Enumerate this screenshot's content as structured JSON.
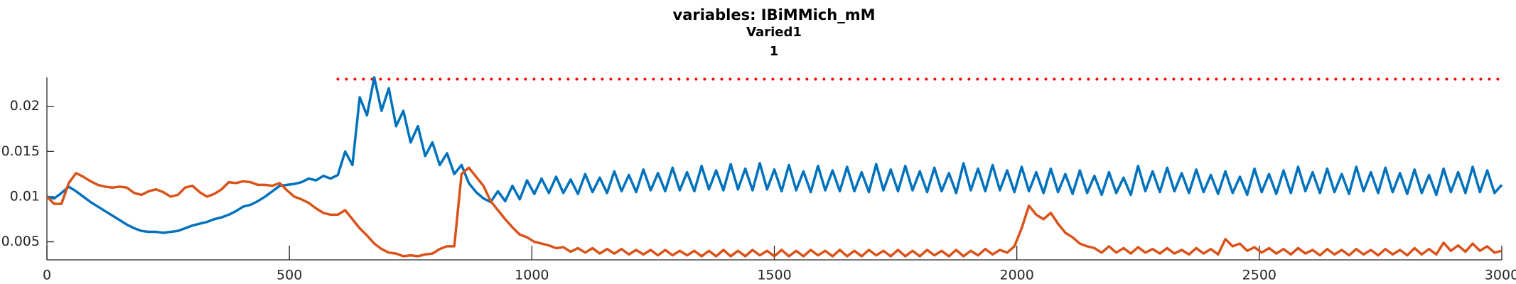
{
  "chart_data": {
    "type": "line",
    "title": "variables: IBiMMich_mM",
    "subtitle": "Varied1",
    "panel_label": "1",
    "x": [
      0,
      15,
      30,
      45,
      60,
      75,
      90,
      105,
      120,
      135,
      150,
      165,
      180,
      195,
      210,
      225,
      240,
      255,
      270,
      285,
      300,
      315,
      330,
      345,
      360,
      375,
      390,
      405,
      420,
      435,
      450,
      465,
      480,
      495,
      510,
      525,
      540,
      555,
      570,
      585,
      600,
      615,
      630,
      645,
      660,
      675,
      690,
      705,
      720,
      735,
      750,
      765,
      780,
      795,
      810,
      825,
      840,
      855,
      870,
      885,
      900,
      915,
      930,
      945,
      960,
      975,
      990,
      1005,
      1020,
      1035,
      1050,
      1065,
      1080,
      1095,
      1110,
      1125,
      1140,
      1155,
      1170,
      1185,
      1200,
      1215,
      1230,
      1245,
      1260,
      1275,
      1290,
      1305,
      1320,
      1335,
      1350,
      1365,
      1380,
      1395,
      1410,
      1425,
      1440,
      1455,
      1470,
      1485,
      1500,
      1515,
      1530,
      1545,
      1560,
      1575,
      1590,
      1605,
      1620,
      1635,
      1650,
      1665,
      1680,
      1695,
      1710,
      1725,
      1740,
      1755,
      1770,
      1785,
      1800,
      1815,
      1830,
      1845,
      1860,
      1875,
      1890,
      1905,
      1920,
      1935,
      1950,
      1965,
      1980,
      1995,
      2010,
      2025,
      2040,
      2055,
      2070,
      2085,
      2100,
      2115,
      2130,
      2145,
      2160,
      2175,
      2190,
      2205,
      2220,
      2235,
      2250,
      2265,
      2280,
      2295,
      2310,
      2325,
      2340,
      2355,
      2370,
      2385,
      2400,
      2415,
      2430,
      2445,
      2460,
      2475,
      2490,
      2505,
      2520,
      2535,
      2550,
      2565,
      2580,
      2595,
      2610,
      2625,
      2640,
      2655,
      2670,
      2685,
      2700,
      2715,
      2730,
      2745,
      2760,
      2775,
      2790,
      2805,
      2820,
      2835,
      2850,
      2865,
      2880,
      2895,
      2910,
      2925,
      2940,
      2955,
      2970,
      2985,
      3000
    ],
    "series": [
      {
        "color": "#0072bd",
        "values": [
          0.01,
          0.0098,
          0.0104,
          0.0111,
          0.0106,
          0.01,
          0.0094,
          0.0089,
          0.0084,
          0.0079,
          0.0074,
          0.0069,
          0.0065,
          0.0062,
          0.0061,
          0.0061,
          0.006,
          0.0061,
          0.0062,
          0.0065,
          0.0068,
          0.007,
          0.0072,
          0.0075,
          0.0077,
          0.008,
          0.0084,
          0.0089,
          0.0091,
          0.0095,
          0.01,
          0.0106,
          0.0112,
          0.0113,
          0.0114,
          0.0116,
          0.012,
          0.0118,
          0.0123,
          0.012,
          0.0124,
          0.015,
          0.0135,
          0.021,
          0.019,
          0.0232,
          0.0195,
          0.022,
          0.0178,
          0.0195,
          0.016,
          0.0178,
          0.0145,
          0.016,
          0.0135,
          0.0148,
          0.0125,
          0.0135,
          0.0115,
          0.0105,
          0.0098,
          0.0094,
          0.0106,
          0.0095,
          0.0112,
          0.0097,
          0.0118,
          0.0103,
          0.012,
          0.0104,
          0.0122,
          0.0104,
          0.0119,
          0.0103,
          0.0125,
          0.0105,
          0.0121,
          0.0104,
          0.0128,
          0.0106,
          0.0124,
          0.0105,
          0.013,
          0.0107,
          0.0126,
          0.0106,
          0.0132,
          0.0107,
          0.0127,
          0.0106,
          0.0134,
          0.0108,
          0.0129,
          0.0107,
          0.0136,
          0.0108,
          0.0131,
          0.0107,
          0.0137,
          0.0108,
          0.013,
          0.0106,
          0.0135,
          0.0107,
          0.0128,
          0.0105,
          0.0134,
          0.0107,
          0.0129,
          0.0106,
          0.0133,
          0.0106,
          0.0127,
          0.0105,
          0.0136,
          0.0107,
          0.013,
          0.0106,
          0.0134,
          0.0107,
          0.0128,
          0.0105,
          0.0132,
          0.0106,
          0.0126,
          0.0104,
          0.0137,
          0.0107,
          0.0131,
          0.0106,
          0.0135,
          0.0107,
          0.0129,
          0.0105,
          0.0133,
          0.0106,
          0.0127,
          0.0104,
          0.0131,
          0.0105,
          0.0125,
          0.0103,
          0.0129,
          0.0104,
          0.0123,
          0.0102,
          0.0127,
          0.0104,
          0.0121,
          0.0102,
          0.0134,
          0.0106,
          0.0128,
          0.0105,
          0.0132,
          0.0106,
          0.0126,
          0.0104,
          0.013,
          0.0105,
          0.0124,
          0.0103,
          0.0128,
          0.0104,
          0.0122,
          0.0102,
          0.0131,
          0.0105,
          0.0125,
          0.0103,
          0.0129,
          0.0104,
          0.0133,
          0.0106,
          0.0127,
          0.0104,
          0.0131,
          0.0105,
          0.0125,
          0.0103,
          0.0133,
          0.0106,
          0.0127,
          0.0104,
          0.0132,
          0.0105,
          0.0126,
          0.0103,
          0.013,
          0.0104,
          0.0124,
          0.0102,
          0.0131,
          0.0105,
          0.0127,
          0.0104,
          0.0133,
          0.0105,
          0.0129,
          0.0104,
          0.0113
        ]
      },
      {
        "color": "#d95319",
        "values": [
          0.01,
          0.0092,
          0.0092,
          0.0115,
          0.0126,
          0.0122,
          0.0117,
          0.0113,
          0.0111,
          0.011,
          0.0111,
          0.011,
          0.0104,
          0.0102,
          0.0106,
          0.0108,
          0.0105,
          0.01,
          0.0102,
          0.011,
          0.0112,
          0.0105,
          0.01,
          0.0103,
          0.0108,
          0.0116,
          0.0115,
          0.0117,
          0.0116,
          0.0113,
          0.0113,
          0.0112,
          0.0115,
          0.0107,
          0.01,
          0.0097,
          0.0093,
          0.0087,
          0.0082,
          0.008,
          0.008,
          0.0085,
          0.0075,
          0.0065,
          0.0057,
          0.0048,
          0.0042,
          0.0038,
          0.0037,
          0.0034,
          0.0035,
          0.0034,
          0.0036,
          0.0037,
          0.0042,
          0.0045,
          0.0045,
          0.0125,
          0.0132,
          0.0122,
          0.0112,
          0.0095,
          0.0085,
          0.0075,
          0.0066,
          0.0058,
          0.0055,
          0.005,
          0.0048,
          0.0046,
          0.0043,
          0.0044,
          0.0039,
          0.0043,
          0.0038,
          0.0043,
          0.0037,
          0.0042,
          0.0037,
          0.0042,
          0.0036,
          0.0041,
          0.0036,
          0.0041,
          0.0035,
          0.0041,
          0.0035,
          0.004,
          0.0035,
          0.004,
          0.0034,
          0.004,
          0.0034,
          0.0041,
          0.0034,
          0.004,
          0.0034,
          0.0041,
          0.0035,
          0.004,
          0.0034,
          0.0041,
          0.0034,
          0.004,
          0.0034,
          0.0041,
          0.0035,
          0.004,
          0.0034,
          0.0041,
          0.0034,
          0.004,
          0.0034,
          0.0041,
          0.0035,
          0.004,
          0.0034,
          0.0041,
          0.0034,
          0.004,
          0.0034,
          0.0041,
          0.0035,
          0.004,
          0.0034,
          0.0041,
          0.0034,
          0.004,
          0.0035,
          0.0042,
          0.0036,
          0.0041,
          0.0038,
          0.0045,
          0.0065,
          0.009,
          0.008,
          0.0075,
          0.0082,
          0.007,
          0.006,
          0.0055,
          0.0048,
          0.0045,
          0.0043,
          0.0038,
          0.0045,
          0.0038,
          0.0043,
          0.0037,
          0.0044,
          0.0038,
          0.0042,
          0.0037,
          0.0043,
          0.0037,
          0.0041,
          0.0036,
          0.0043,
          0.0037,
          0.0042,
          0.0036,
          0.0053,
          0.0045,
          0.0048,
          0.004,
          0.0044,
          0.0038,
          0.0043,
          0.0037,
          0.0042,
          0.0036,
          0.0043,
          0.0037,
          0.0041,
          0.0035,
          0.0042,
          0.0036,
          0.0041,
          0.0035,
          0.0042,
          0.0036,
          0.0041,
          0.0035,
          0.0042,
          0.0036,
          0.0041,
          0.0035,
          0.0043,
          0.0036,
          0.0042,
          0.0036,
          0.0049,
          0.004,
          0.0046,
          0.0039,
          0.0048,
          0.004,
          0.0045,
          0.0038,
          0.004
        ]
      }
    ],
    "hlines": [
      {
        "y": 0.023,
        "xmin": 600,
        "xmax": 3000,
        "color": "#ff0000"
      }
    ],
    "xlim": [
      0,
      3000
    ],
    "xticks": [
      0,
      500,
      1000,
      1500,
      2000,
      2500,
      3000
    ],
    "ylim": [
      0.003,
      0.0232
    ],
    "yticks": [
      0.005,
      0.01,
      0.015,
      0.02
    ]
  }
}
